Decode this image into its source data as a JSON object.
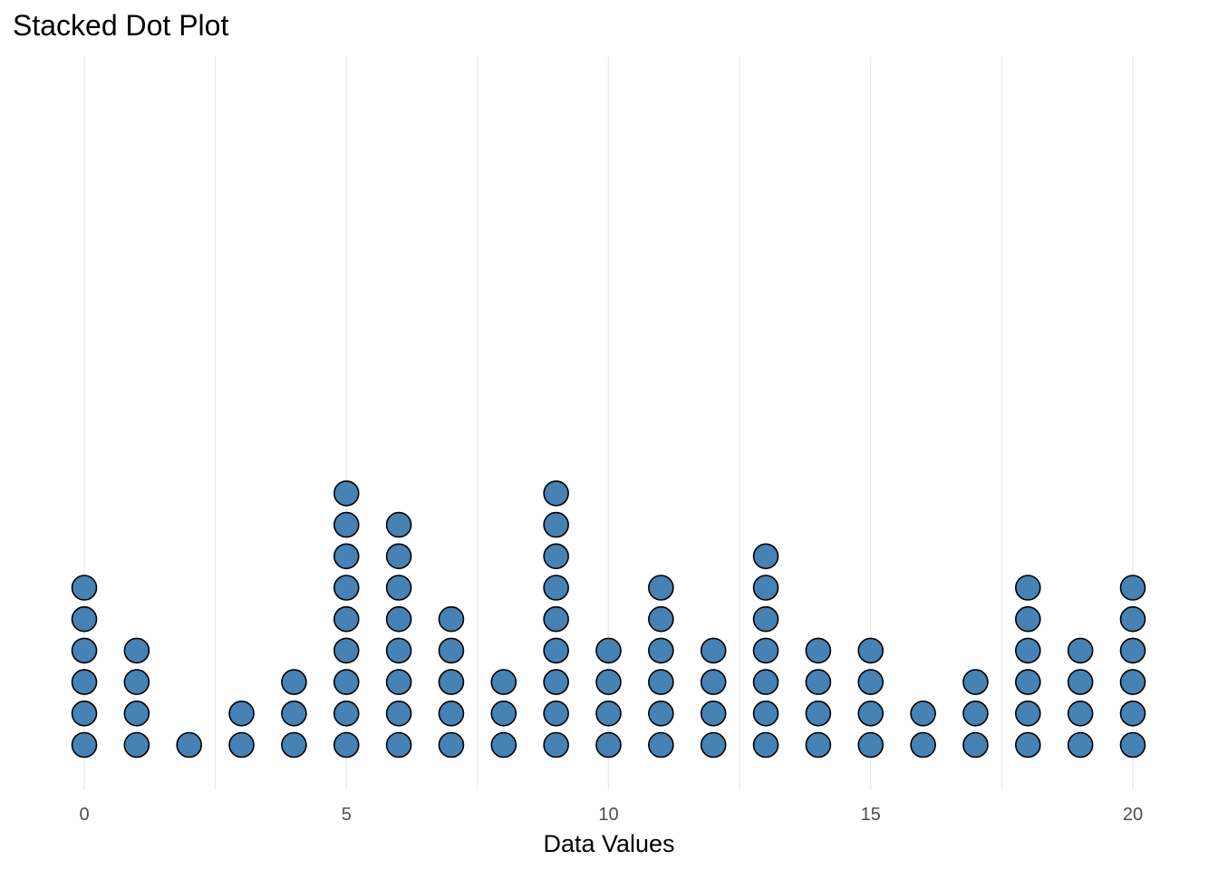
{
  "chart_data": {
    "type": "scatter",
    "subtype": "stacked-dot",
    "title": "Stacked Dot Plot",
    "xlabel": "Data Values",
    "ylabel": "",
    "xlim": [
      -0.4,
      20.4
    ],
    "x_ticks": [
      0,
      5,
      10,
      15,
      20
    ],
    "x_tick_labels": [
      "0",
      "5",
      "10",
      "15",
      "20"
    ],
    "x_minor_gridlines": [
      2.5,
      7.5,
      12.5,
      17.5
    ],
    "grid": true,
    "y_axis_shown": false,
    "dot_fill": "#4682b4",
    "dot_stroke": "#000000",
    "grid_color": "#ebebeb",
    "x": [
      0,
      1,
      2,
      3,
      4,
      5,
      6,
      7,
      8,
      9,
      10,
      11,
      12,
      13,
      14,
      15,
      16,
      17,
      18,
      19,
      20
    ],
    "counts": [
      6,
      4,
      1,
      2,
      3,
      9,
      8,
      5,
      3,
      9,
      4,
      6,
      4,
      7,
      4,
      4,
      2,
      3,
      6,
      4,
      6
    ]
  }
}
